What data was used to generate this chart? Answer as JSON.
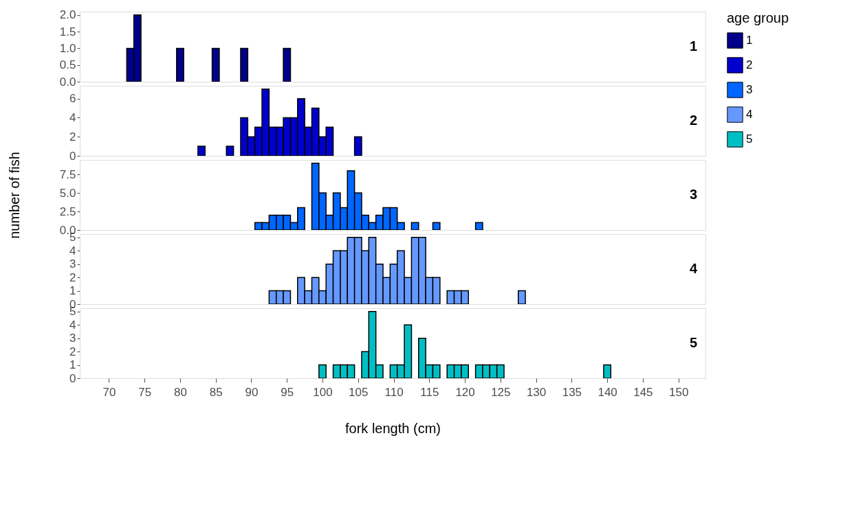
{
  "chart_data": [
    {
      "type": "histogram",
      "title": "1",
      "legend_title": "age group",
      "legend": "right",
      "tick_labels": "y",
      "grid": false,
      "bins": [
        72.5,
        73.5,
        74.5,
        75.5,
        76.5,
        77.5,
        78.5,
        79.5,
        80.5,
        81.5,
        82.5,
        83.5,
        84.5,
        85.5,
        86.5,
        87.5,
        88.5,
        89.5,
        90.5,
        91.5,
        92.5,
        93.5,
        94.5,
        95.5
      ],
      "series": [
        {
          "name": "1",
          "color": "#00008b",
          "values": [
            1,
            2,
            0,
            0,
            0,
            0,
            0,
            1,
            0,
            0,
            0,
            0,
            1,
            0,
            0,
            0,
            1,
            0,
            0,
            0,
            0,
            0,
            1
          ]
        }
      ],
      "xlim": [
        65.9,
        153.8
      ],
      "xticks": [
        70,
        75,
        80,
        85,
        90,
        95,
        100,
        105,
        110,
        115,
        120,
        125,
        130,
        135,
        140,
        145,
        150
      ],
      "ylim": [
        0,
        2.1
      ],
      "yticks": [
        {
          "value": 0,
          "label": "0.0"
        },
        0.5,
        {
          "value": 1,
          "label": "1.0"
        },
        1.5,
        {
          "value": 2,
          "label": "2.0"
        }
      ]
    },
    {
      "type": "histogram",
      "title": "2",
      "tick_labels": "y",
      "grid": false,
      "bins": [
        82.5,
        83.5,
        84.5,
        85.5,
        86.5,
        87.5,
        88.5,
        89.5,
        90.5,
        91.5,
        92.5,
        93.5,
        94.5,
        95.5,
        96.5,
        97.5,
        98.5,
        99.5,
        100.5,
        101.5,
        102.5,
        103.5,
        104.5,
        105.5
      ],
      "series": [
        {
          "name": "2",
          "color": "#0000cd",
          "values": [
            1,
            0,
            0,
            0,
            1,
            0,
            4,
            2,
            3,
            7,
            3,
            3,
            4,
            4,
            6,
            3,
            5,
            2,
            3,
            0,
            0,
            0,
            2
          ]
        }
      ],
      "xlim": [
        65.9,
        153.8
      ],
      "xticks": [
        70,
        75,
        80,
        85,
        90,
        95,
        100,
        105,
        110,
        115,
        120,
        125,
        130,
        135,
        140,
        145,
        150
      ],
      "ylim": [
        0,
        7.35
      ],
      "yticks": [
        0,
        2,
        4,
        6
      ]
    },
    {
      "type": "histogram",
      "title": "3",
      "ylabel": "number of fish",
      "tick_labels": "y",
      "grid": false,
      "bins": [
        90.5,
        91.5,
        92.5,
        93.5,
        94.5,
        95.5,
        96.5,
        97.5,
        98.5,
        99.5,
        100.5,
        101.5,
        102.5,
        103.5,
        104.5,
        105.5,
        106.5,
        107.5,
        108.5,
        109.5,
        110.5,
        111.5,
        112.5,
        113.5,
        114.5,
        115.5,
        116.5,
        117.5,
        118.5,
        119.5,
        120.5,
        121.5,
        122.5
      ],
      "series": [
        {
          "name": "3",
          "color": "#0066ff",
          "values": [
            1,
            1,
            2,
            2,
            2,
            1,
            3,
            0,
            9,
            5,
            2,
            5,
            3,
            8,
            5,
            2,
            1,
            2,
            3,
            3,
            1,
            0,
            1,
            0,
            0,
            1,
            0,
            0,
            0,
            0,
            0,
            1
          ]
        }
      ],
      "xlim": [
        65.9,
        153.8
      ],
      "xticks": [
        70,
        75,
        80,
        85,
        90,
        95,
        100,
        105,
        110,
        115,
        120,
        125,
        130,
        135,
        140,
        145,
        150
      ],
      "ylim": [
        0,
        9.45
      ],
      "yticks": [
        {
          "value": 0,
          "label": "0.0"
        },
        2.5,
        {
          "value": 5,
          "label": "5.0"
        },
        7.5
      ]
    },
    {
      "type": "histogram",
      "title": "4",
      "tick_labels": "y",
      "grid": false,
      "bins": [
        92.5,
        93.5,
        94.5,
        95.5,
        96.5,
        97.5,
        98.5,
        99.5,
        100.5,
        101.5,
        102.5,
        103.5,
        104.5,
        105.5,
        106.5,
        107.5,
        108.5,
        109.5,
        110.5,
        111.5,
        112.5,
        113.5,
        114.5,
        115.5,
        116.5,
        117.5,
        118.5,
        119.5,
        120.5,
        121.5,
        122.5,
        123.5,
        124.5,
        125.5,
        126.5,
        127.5,
        128.5
      ],
      "series": [
        {
          "name": "4",
          "color": "#6699ff",
          "values": [
            1,
            1,
            1,
            0,
            2,
            1,
            2,
            1,
            3,
            4,
            4,
            5,
            5,
            4,
            5,
            3,
            2,
            3,
            4,
            2,
            5,
            5,
            2,
            2,
            0,
            1,
            1,
            1,
            0,
            0,
            0,
            0,
            0,
            0,
            0,
            1
          ]
        }
      ],
      "xlim": [
        65.9,
        153.8
      ],
      "xticks": [
        70,
        75,
        80,
        85,
        90,
        95,
        100,
        105,
        110,
        115,
        120,
        125,
        130,
        135,
        140,
        145,
        150
      ],
      "ylim": [
        0,
        5.25
      ],
      "yticks": [
        0,
        1,
        2,
        3,
        4,
        5
      ]
    },
    {
      "type": "histogram",
      "title": "5",
      "xlabel": "fork length (cm)",
      "grid": false,
      "bins": [
        99.5,
        100.5,
        101.5,
        102.5,
        103.5,
        104.5,
        105.5,
        106.5,
        107.5,
        108.5,
        109.5,
        110.5,
        111.5,
        112.5,
        113.5,
        114.5,
        115.5,
        116.5,
        117.5,
        118.5,
        119.5,
        120.5,
        121.5,
        122.5,
        123.5,
        124.5,
        125.5,
        126.5,
        127.5,
        128.5,
        129.5,
        130.5,
        131.5,
        132.5,
        133.5,
        134.5,
        135.5,
        136.5,
        137.5,
        138.5,
        139.5,
        140.5
      ],
      "series": [
        {
          "name": "5",
          "color": "#00bfc4",
          "values": [
            1,
            0,
            1,
            1,
            1,
            0,
            2,
            5,
            1,
            0,
            1,
            1,
            4,
            0,
            3,
            1,
            1,
            0,
            1,
            1,
            1,
            0,
            1,
            1,
            1,
            1,
            0,
            0,
            0,
            0,
            0,
            0,
            0,
            0,
            0,
            0,
            0,
            0,
            0,
            0,
            1
          ]
        }
      ],
      "xlim": [
        65.9,
        153.8
      ],
      "xticks": [
        70,
        75,
        80,
        85,
        90,
        95,
        100,
        105,
        110,
        115,
        120,
        125,
        130,
        135,
        140,
        145,
        150
      ],
      "ylim": [
        0,
        5.25
      ],
      "yticks": [
        0,
        1,
        2,
        3,
        4,
        5
      ]
    }
  ]
}
